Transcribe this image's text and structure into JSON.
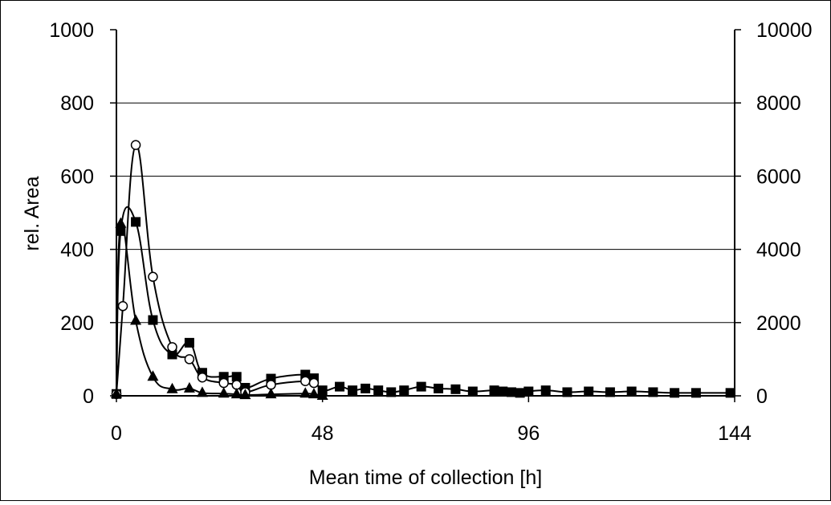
{
  "chart_data": {
    "type": "line",
    "title": "",
    "xlabel": "Mean time of collection [h]",
    "ylabel": "rel. Area",
    "y2label": "",
    "xlim": [
      0,
      144
    ],
    "ylim": [
      0,
      1000
    ],
    "y2lim": [
      0,
      10000
    ],
    "x_ticks": [
      "0",
      "48",
      "96",
      "144"
    ],
    "y_ticks": [
      "0",
      "200",
      "400",
      "600",
      "800",
      "1000"
    ],
    "y2_ticks": [
      "0",
      "2000",
      "4000",
      "6000",
      "8000",
      "10000"
    ],
    "grid": "horizontal",
    "legend": "none",
    "series": [
      {
        "marker": "square",
        "axis": "left",
        "x": [
          0,
          1,
          4.5,
          8.5,
          13,
          17,
          20,
          25,
          28,
          30,
          36,
          44,
          46,
          48,
          52,
          55,
          58,
          61,
          64,
          67,
          71,
          75,
          79,
          83,
          88,
          90,
          92,
          94,
          96,
          100,
          105,
          110,
          115,
          120,
          125,
          130,
          135,
          143
        ],
        "y": [
          5,
          450,
          475,
          207,
          113,
          145,
          63,
          52,
          52,
          22,
          47,
          58,
          48,
          15,
          25,
          15,
          20,
          15,
          10,
          15,
          25,
          20,
          18,
          12,
          15,
          12,
          10,
          8,
          12,
          15,
          10,
          12,
          10,
          12,
          10,
          8,
          8,
          8
        ]
      },
      {
        "marker": "circle",
        "axis": "left",
        "x": [
          0,
          1.5,
          4.5,
          8.5,
          13,
          17,
          20,
          25,
          28,
          30,
          36,
          44,
          46
        ],
        "y": [
          5,
          245,
          685,
          325,
          133,
          100,
          50,
          35,
          30,
          10,
          30,
          40,
          35
        ]
      },
      {
        "marker": "triangle",
        "axis": "right",
        "x": [
          0,
          1,
          4.5,
          8.5,
          13,
          17,
          20,
          25,
          28,
          30,
          36,
          44,
          46,
          48
        ],
        "y": [
          50,
          4700,
          2050,
          520,
          180,
          200,
          80,
          60,
          40,
          20,
          40,
          60,
          40,
          0
        ]
      }
    ]
  }
}
